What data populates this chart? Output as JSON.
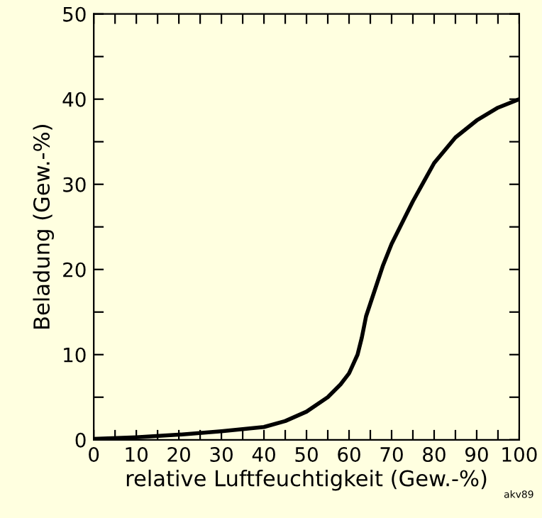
{
  "chart_data": {
    "type": "line",
    "xlabel": "relative Luftfeuchtigkeit (Gew.-%)",
    "ylabel": "Beladung (Gew.-%)",
    "annotations": [
      "akv89"
    ],
    "x": [
      0,
      10,
      20,
      30,
      40,
      45,
      50,
      55,
      58,
      60,
      62,
      63,
      64,
      65,
      66,
      68,
      70,
      72,
      75,
      80,
      85,
      90,
      95,
      100
    ],
    "series": [
      {
        "color": "#000000",
        "values": [
          0.1,
          0.3,
          0.6,
          1.0,
          1.5,
          2.2,
          3.3,
          5.0,
          6.5,
          7.8,
          10.0,
          12.0,
          14.5,
          16.0,
          17.5,
          20.5,
          23.0,
          25.0,
          28.0,
          32.5,
          35.5,
          37.5,
          39.0,
          40.0
        ]
      }
    ],
    "xlim": [
      0,
      100
    ],
    "ylim": [
      0,
      50
    ],
    "xticks": [
      0,
      {
        "value": 5,
        "label": null
      },
      10,
      {
        "value": 15,
        "label": null
      },
      20,
      {
        "value": 25,
        "label": null
      },
      30,
      {
        "value": 35,
        "label": null
      },
      40,
      {
        "value": 45,
        "label": null
      },
      50,
      {
        "value": 55,
        "label": null
      },
      60,
      {
        "value": 65,
        "label": null
      },
      70,
      {
        "value": 75,
        "label": null
      },
      80,
      {
        "value": 85,
        "label": null
      },
      90,
      {
        "value": 95,
        "label": null
      },
      100
    ],
    "yticks": [
      0,
      {
        "value": 5,
        "label": null
      },
      10,
      {
        "value": 15,
        "label": null
      },
      20,
      {
        "value": 25,
        "label": null
      },
      30,
      {
        "value": 35,
        "label": null
      },
      40,
      {
        "value": 45,
        "label": null
      },
      50
    ],
    "grid": false,
    "legend": false,
    "marker": "none",
    "line_style": "solid"
  }
}
